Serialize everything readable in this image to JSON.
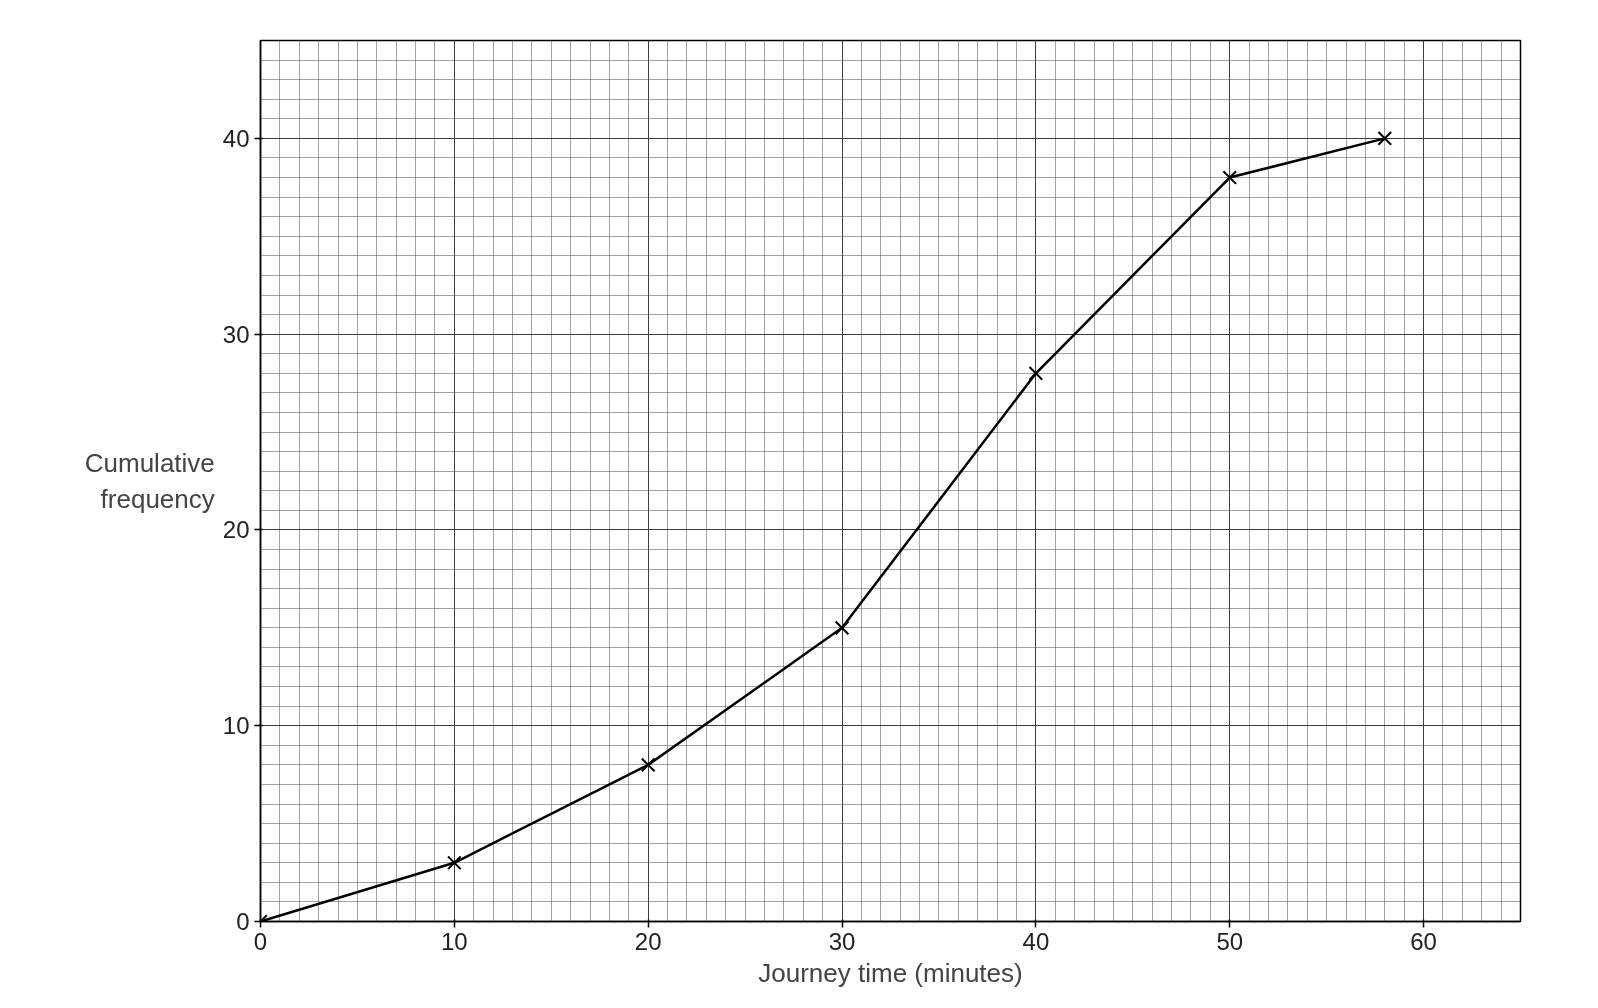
{
  "chart_data": {
    "type": "line",
    "xlabel": "Journey time (minutes)",
    "ylabel": "Cumulative frequency",
    "x": [
      0,
      10,
      20,
      30,
      40,
      50,
      58
    ],
    "values": [
      0,
      3,
      8,
      15,
      28,
      38,
      40
    ],
    "color": "#000000",
    "marker": "cross",
    "line_style": "solid",
    "xlim": [
      0,
      65
    ],
    "ylim": [
      0,
      45
    ],
    "xticks": [
      0,
      10,
      20,
      30,
      40,
      50,
      60
    ],
    "yticks": [
      0,
      10,
      20,
      30,
      40
    ],
    "grid": true
  }
}
